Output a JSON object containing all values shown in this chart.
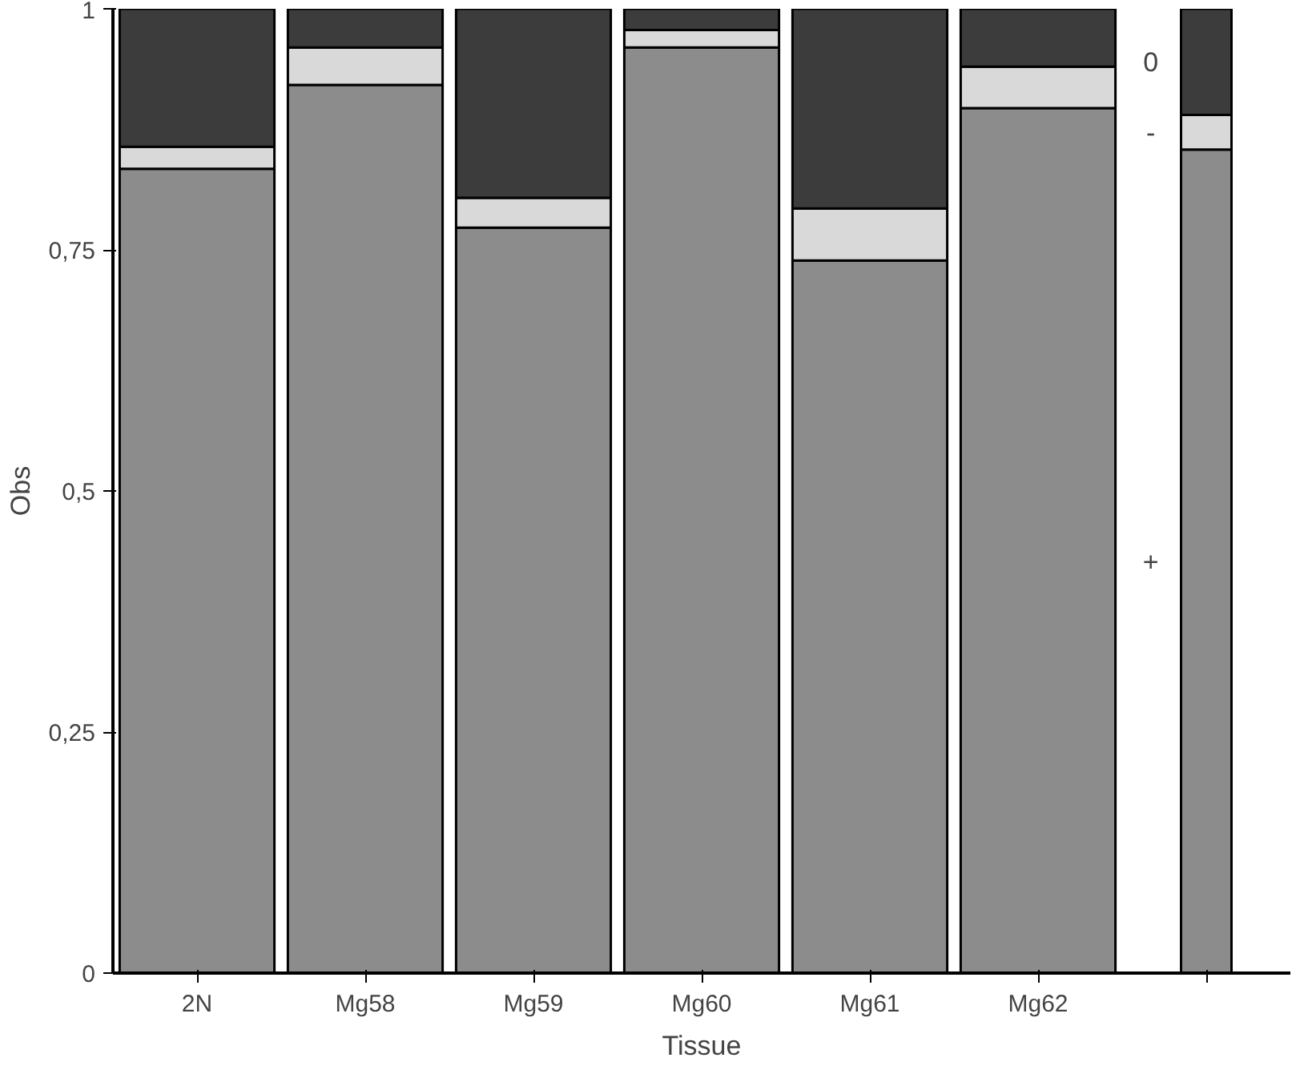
{
  "chart_data": {
    "type": "bar",
    "stacked": true,
    "xlabel": "Tissue",
    "ylabel": "Obs",
    "categories": [
      "2N",
      "Mg58",
      "Mg59",
      "Mg60",
      "Mg61",
      "Mg62",
      null
    ],
    "series": [
      {
        "name": "+",
        "color": "#8c8c8c",
        "values": [
          0.834,
          0.921,
          0.773,
          0.96,
          0.739,
          0.897,
          0.854
        ]
      },
      {
        "name": "-",
        "color": "#d9d9d9",
        "values": [
          0.023,
          0.039,
          0.031,
          0.018,
          0.054,
          0.043,
          0.036
        ]
      },
      {
        "name": "0",
        "color": "#3c3c3c",
        "values": [
          0.143,
          0.04,
          0.196,
          0.022,
          0.207,
          0.06,
          0.11
        ]
      }
    ],
    "ylim": [
      0,
      1
    ],
    "yticks": [
      0,
      {
        "value": 0.25,
        "label": "0,25"
      },
      {
        "value": 0.5,
        "label": "0,5"
      },
      {
        "value": 0.75,
        "label": "0,75"
      },
      1
    ],
    "grid": false,
    "legend": "right"
  }
}
